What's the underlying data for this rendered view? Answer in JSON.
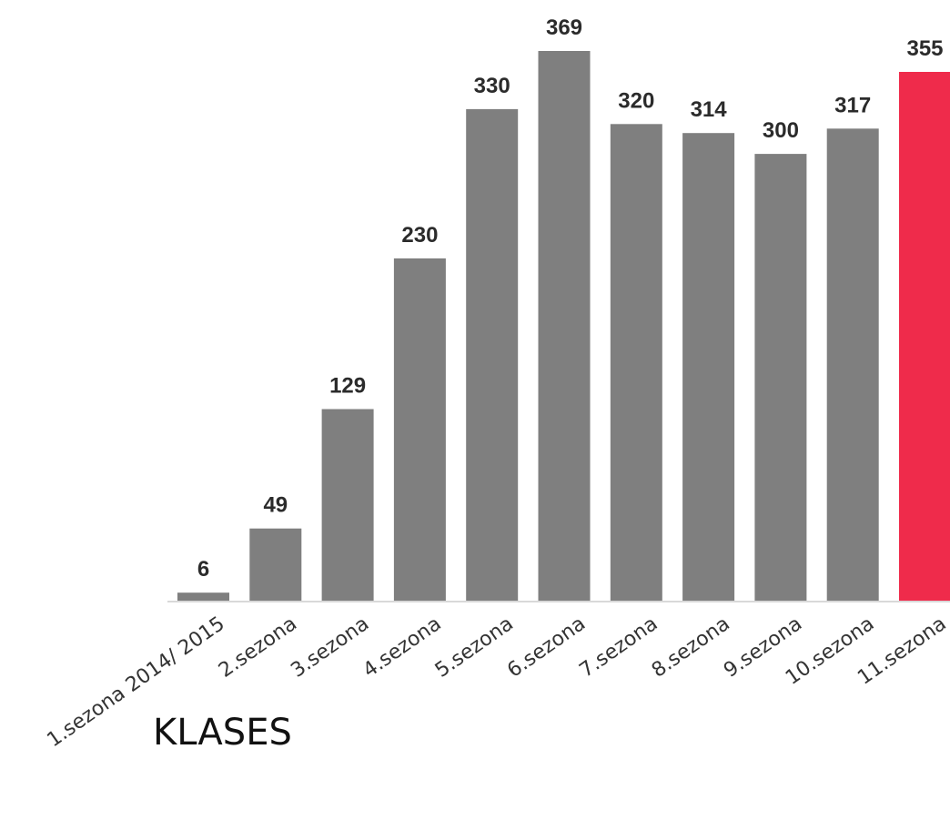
{
  "chart_data": {
    "type": "bar",
    "categories": [
      "1.sezona 2014/ 2015",
      "2.sezona",
      "3.sezona",
      "4.sezona",
      "5.sezona",
      "6.sezona",
      "7.sezona",
      "8.sezona",
      "9.sezona",
      "10.sezona",
      "11.sezona"
    ],
    "values": [
      6,
      49,
      129,
      230,
      330,
      369,
      320,
      314,
      300,
      317,
      355
    ],
    "title": "KLASES",
    "ylim": [
      0,
      369
    ],
    "grid": false,
    "legend": "none",
    "colors": {
      "bar": "#7f7f7f",
      "highlight": "#ef2b4b",
      "axis": "#d9d9d9"
    },
    "highlight_index": 10
  }
}
